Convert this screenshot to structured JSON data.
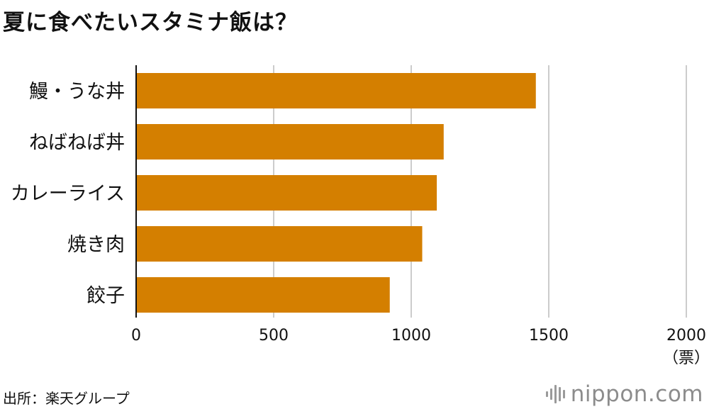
{
  "title": "夏に食べたいスタミナ飯は？",
  "source": "出所：楽天グループ",
  "brand": "nippon.com",
  "colors": {
    "bar": "#D47F00",
    "grid": "#CCCCCC",
    "axis": "#111111"
  },
  "chart_data": {
    "type": "bar",
    "orientation": "horizontal",
    "categories": [
      "鰻・うな丼",
      "ねばねば丼",
      "カレーライス",
      "焼き肉",
      "餃子"
    ],
    "values": [
      1453,
      1118,
      1093,
      1040,
      922
    ],
    "xlim": [
      0,
      2000
    ],
    "xticks": [
      0,
      500,
      1000,
      1500,
      2000
    ],
    "xtick_labels": [
      "0",
      "500",
      "1000",
      "1500",
      "2000"
    ],
    "unit": "（票）",
    "grid": true
  }
}
